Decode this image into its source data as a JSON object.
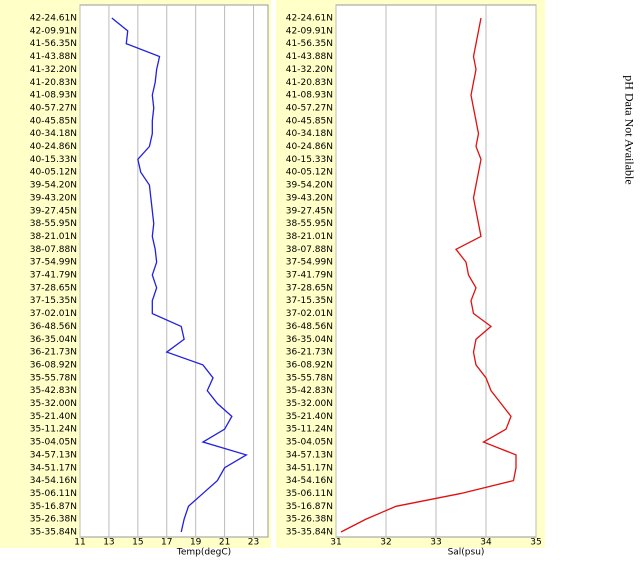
{
  "chart_data": [
    {
      "type": "line",
      "orientation": "horizontal",
      "xlabel": "Temp(degC)",
      "categories": [
        "42-24.61N",
        "42-09.91N",
        "41-56.35N",
        "41-43.88N",
        "41-32.20N",
        "41-20.83N",
        "41-08.93N",
        "40-57.27N",
        "40-45.85N",
        "40-34.18N",
        "40-24.86N",
        "40-15.33N",
        "40-05.12N",
        "39-54.20N",
        "39-43.20N",
        "39-27.45N",
        "38-55.95N",
        "38-21.01N",
        "38-07.88N",
        "37-54.99N",
        "37-41.79N",
        "37-28.65N",
        "37-15.35N",
        "37-02.01N",
        "36-48.56N",
        "36-35.04N",
        "36-21.73N",
        "36-08.92N",
        "35-55.78N",
        "35-42.83N",
        "35-32.00N",
        "35-21.40N",
        "35-11.24N",
        "35-04.05N",
        "34-57.13N",
        "34-51.17N",
        "34-54.16N",
        "35-06.11N",
        "35-16.87N",
        "35-26.38N",
        "35-35.84N"
      ],
      "series": [
        {
          "name": "Temp",
          "color": "#2020e0",
          "values": [
            13.2,
            14.3,
            14.2,
            16.5,
            16.3,
            16.2,
            16.0,
            16.1,
            16.0,
            16.0,
            15.8,
            15.0,
            15.2,
            15.8,
            15.9,
            16.0,
            16.1,
            16.0,
            16.2,
            16.3,
            16.0,
            16.3,
            16.0,
            16.0,
            18.0,
            18.2,
            17.0,
            19.5,
            20.2,
            19.8,
            20.5,
            21.5,
            21.0,
            19.5,
            22.5,
            21.0,
            20.5,
            19.5,
            18.5,
            18.2,
            18.0
          ]
        }
      ],
      "xlim": [
        11,
        24
      ],
      "xticks": [
        11,
        13,
        15,
        17,
        19,
        21,
        23
      ],
      "grid": true
    },
    {
      "type": "line",
      "orientation": "horizontal",
      "xlabel": "Sal(psu)",
      "categories": [
        "42-24.61N",
        "42-09.91N",
        "41-56.35N",
        "41-43.88N",
        "41-32.20N",
        "41-20.83N",
        "41-08.93N",
        "40-57.27N",
        "40-45.85N",
        "40-34.18N",
        "40-24.86N",
        "40-15.33N",
        "40-05.12N",
        "39-54.20N",
        "39-43.20N",
        "39-27.45N",
        "38-55.95N",
        "38-21.01N",
        "38-07.88N",
        "37-54.99N",
        "37-41.79N",
        "37-28.65N",
        "37-15.35N",
        "37-02.01N",
        "36-48.56N",
        "36-35.04N",
        "36-21.73N",
        "36-08.92N",
        "35-55.78N",
        "35-42.83N",
        "35-32.00N",
        "35-21.40N",
        "35-11.24N",
        "35-04.05N",
        "34-57.13N",
        "34-51.17N",
        "34-54.16N",
        "35-06.11N",
        "35-16.87N",
        "35-26.38N",
        "35-35.84N"
      ],
      "series": [
        {
          "name": "Sal",
          "color": "#e01010",
          "values": [
            33.9,
            33.85,
            33.8,
            33.75,
            33.8,
            33.75,
            33.7,
            33.75,
            33.8,
            33.85,
            33.8,
            33.9,
            33.85,
            33.8,
            33.75,
            33.8,
            33.85,
            33.9,
            33.4,
            33.6,
            33.65,
            33.8,
            33.7,
            33.75,
            34.1,
            33.8,
            33.75,
            33.8,
            34.0,
            34.1,
            34.3,
            34.5,
            34.4,
            33.95,
            34.6,
            34.6,
            34.55,
            33.5,
            32.2,
            31.6,
            31.1
          ]
        }
      ],
      "xlim": [
        31,
        35
      ],
      "xticks": [
        31,
        32,
        33,
        34,
        35
      ],
      "grid": true
    }
  ],
  "note": "pH Data Not Available"
}
